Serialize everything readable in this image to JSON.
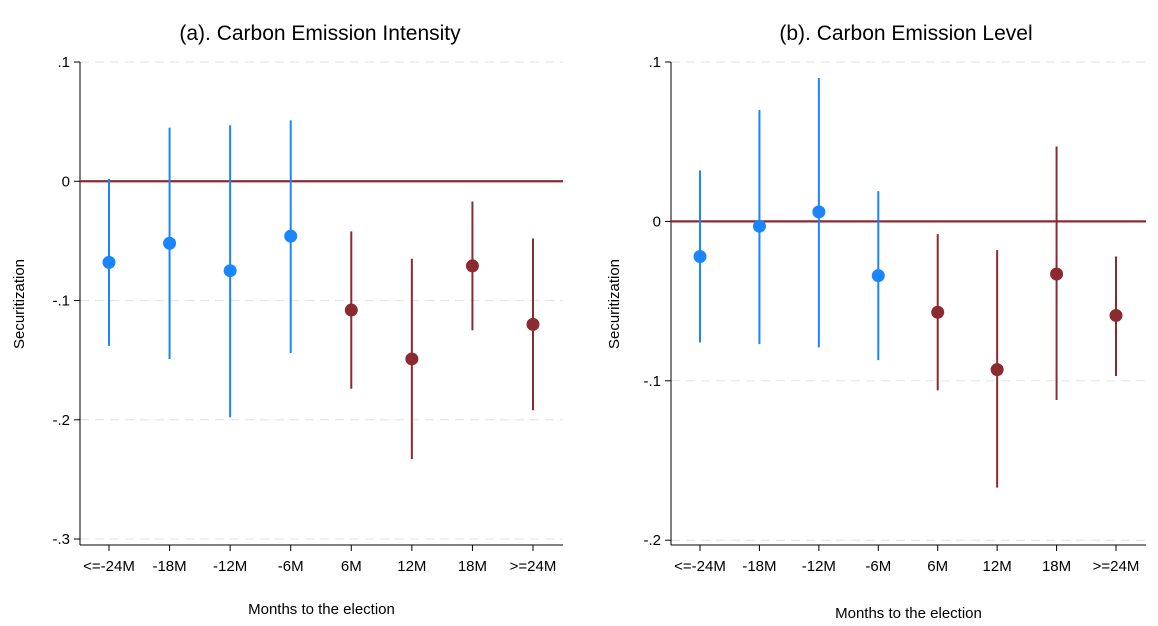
{
  "chart_data": [
    {
      "type": "scatter",
      "title": "(a). Carbon Emission Intensity",
      "xlabel": "Months to the election",
      "ylabel": "Securitization",
      "categories": [
        "<=-24M",
        "-18M",
        "-12M",
        "-6M",
        "6M",
        "12M",
        "18M",
        ">=24M"
      ],
      "yticks": [
        0.1,
        0,
        -0.1,
        -0.2,
        -0.3
      ],
      "ytick_labels": [
        ".1",
        "0",
        "-.1",
        "-.2",
        "-.3"
      ],
      "ylim": [
        -0.305,
        0.1
      ],
      "grid": true,
      "reference_line": 0,
      "series": [
        {
          "name": "",
          "color": "#1a85ff",
          "indices": [
            0,
            1,
            2,
            3
          ],
          "point": [
            -0.068,
            -0.052,
            -0.075,
            -0.046
          ],
          "lower": [
            -0.138,
            -0.149,
            -0.198,
            -0.144
          ],
          "upper": [
            0.002,
            0.045,
            0.047,
            0.051
          ]
        },
        {
          "name": "",
          "color": "#8c2a31",
          "indices": [
            4,
            5,
            6,
            7
          ],
          "point": [
            -0.108,
            -0.149,
            -0.071,
            -0.12
          ],
          "lower": [
            -0.174,
            -0.233,
            -0.125,
            -0.192
          ],
          "upper": [
            -0.042,
            -0.065,
            -0.017,
            -0.048
          ]
        }
      ],
      "ref_color": "#8c2a31"
    },
    {
      "type": "scatter",
      "title": "(b). Carbon Emission Level",
      "xlabel": "Months to the election",
      "ylabel": "Securitization",
      "categories": [
        "<=-24M",
        "-18M",
        "-12M",
        "-6M",
        "6M",
        "12M",
        "18M",
        ">=24M"
      ],
      "yticks": [
        0.1,
        0,
        -0.1,
        -0.2
      ],
      "ytick_labels": [
        ".1",
        "0",
        "-.1",
        "-.2"
      ],
      "ylim": [
        -0.203,
        0.1
      ],
      "grid": true,
      "reference_line": 0,
      "series": [
        {
          "name": "",
          "color": "#1a85ff",
          "indices": [
            0,
            1,
            2,
            3
          ],
          "point": [
            -0.022,
            -0.003,
            0.006,
            -0.034
          ],
          "lower": [
            -0.076,
            -0.077,
            -0.079,
            -0.087
          ],
          "upper": [
            0.032,
            0.07,
            0.09,
            0.019
          ]
        },
        {
          "name": "",
          "color": "#8c2a31",
          "indices": [
            4,
            5,
            6,
            7
          ],
          "point": [
            -0.057,
            -0.093,
            -0.033,
            -0.059
          ],
          "lower": [
            -0.106,
            -0.167,
            -0.112,
            -0.097
          ],
          "upper": [
            -0.008,
            -0.018,
            0.047,
            -0.022
          ]
        }
      ],
      "ref_color": "#8c2a31"
    }
  ]
}
